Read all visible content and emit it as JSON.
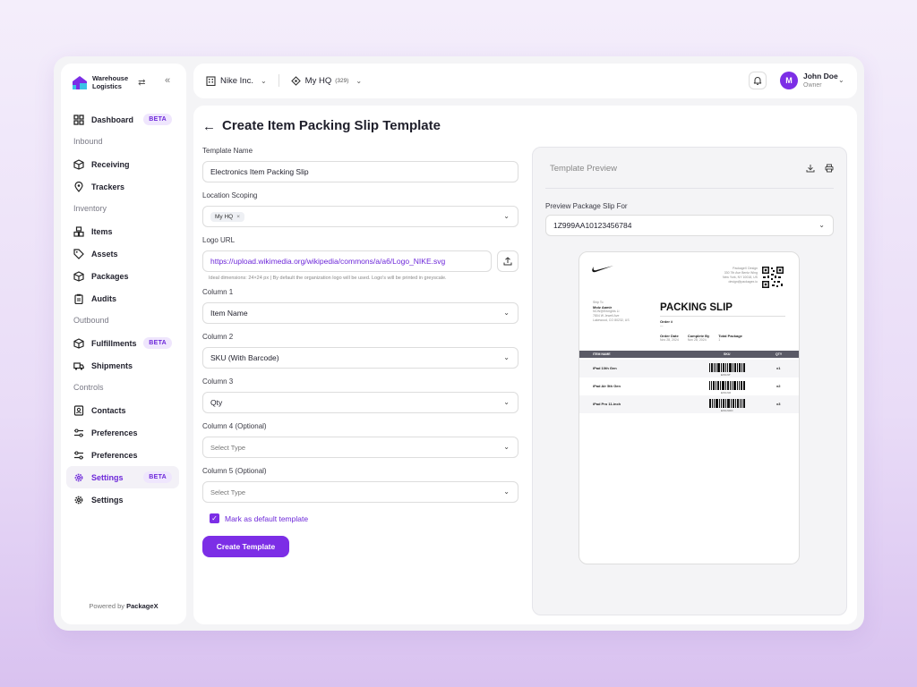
{
  "sidebar": {
    "brand_line1": "Warehouse",
    "brand_line2": "Logistics",
    "dashboard": "Dashboard",
    "dashboard_badge": "BETA",
    "sec_inbound": "Inbound",
    "receiving": "Receiving",
    "trackers": "Trackers",
    "sec_inventory": "Inventory",
    "items": "Items",
    "assets": "Assets",
    "packages": "Packages",
    "audits": "Audits",
    "sec_outbound": "Outbound",
    "fulfillments": "Fulfillments",
    "fulfillments_badge": "BETA",
    "shipments": "Shipments",
    "sec_controls": "Controls",
    "contacts": "Contacts",
    "preferences1": "Preferences",
    "preferences2": "Preferences",
    "settings1": "Settings",
    "settings1_badge": "BETA",
    "settings2": "Settings",
    "powered_prefix": "Powered by",
    "powered_brand": "PackageX"
  },
  "topbar": {
    "org": "Nike Inc.",
    "location": "My HQ",
    "location_count": "(329)",
    "user_initial": "M",
    "user_name": "John Doe",
    "user_role": "Owner"
  },
  "page": {
    "title": "Create Item Packing Slip Template"
  },
  "form": {
    "template_name_label": "Template Name",
    "template_name_value": "Electronics Item Packing Slip",
    "location_label": "Location Scoping",
    "location_chip": "My HQ",
    "logo_label": "Logo URL",
    "logo_value": "https://upload.wikimedia.org/wikipedia/commons/a/a6/Logo_NIKE.svg",
    "logo_hint": "Ideal dimensions: 24×24 px | By default the organization logo will be used. Logo's will be printed in greyscale.",
    "col1_label": "Column 1",
    "col1_value": "Item Name",
    "col2_label": "Column 2",
    "col2_value": "SKU (With Barcode)",
    "col3_label": "Column 3",
    "col3_value": "Qty",
    "col4_label": "Column 4 (Optional)",
    "col4_placeholder": "Select Type",
    "col5_label": "Column 5 (Optional)",
    "col5_placeholder": "Select Type",
    "default_checkbox": "Mark as default template",
    "default_checked": true,
    "submit": "Create Template"
  },
  "preview": {
    "title": "Template Preview",
    "slip_for_label": "Preview Package Slip For",
    "slip_for_value": "1Z999AA10123456784",
    "slip": {
      "org_name": "PackageX Design",
      "org_addr1": "330 7th Ave Bentz Wing",
      "org_addr2": "New York, NY 10018, US",
      "org_email": "design@packagex.io",
      "ship_to_label": "Ship To",
      "ship_to_name": "Moiz Aamir",
      "ship_to_line1": "NCW@Erkrights Li",
      "ship_to_line2": "7804 W Jewell Ave",
      "ship_to_line3": "Lakewood, CO 80232, US",
      "heading": "PACKING SLIP",
      "order_label": "Order #",
      "order_value": "—",
      "order_date_label": "Order Date",
      "order_date": "Nov 28, 2024",
      "complete_by_label": "Complete By",
      "complete_by": "Nov 28, 2024",
      "total_pkg_label": "Total Package",
      "total_pkg": "1",
      "col_item": "ITEM NAME",
      "col_sku": "SKU",
      "col_qty": "QTY",
      "rows": [
        {
          "item": "iPad 10th Gen",
          "sku": "EX0-NT",
          "qty": "x1"
        },
        {
          "item": "iPad Air 5th Gen",
          "sku": "EX0-NO",
          "qty": "x2"
        },
        {
          "item": "iPad Pro 11-inch",
          "sku": "EX0-NOO",
          "qty": "x3"
        }
      ]
    }
  },
  "colors": {
    "accent": "#7c2ee6",
    "accent_text": "#6d28d9",
    "badge_bg": "#efe6fd"
  }
}
